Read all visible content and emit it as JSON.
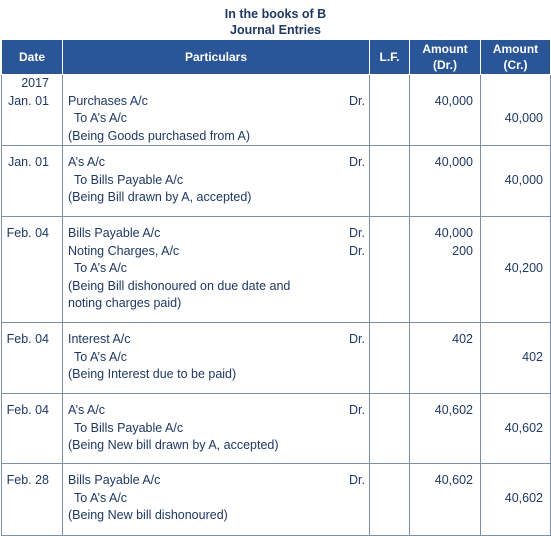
{
  "header": {
    "title": "In the books of B",
    "subtitle": "Journal Entries"
  },
  "columns": {
    "date": "Date",
    "particulars": "Particulars",
    "lf": "L.F.",
    "dr_line1": "Amount",
    "dr_line2": "(Dr.)",
    "cr_line1": "Amount",
    "cr_line2": "(Cr.)"
  },
  "entries": [
    {
      "year": "2017",
      "date": "Jan. 01",
      "debit1": "Purchases A/c",
      "dr1": "Dr.",
      "credit": "To A’s A/c",
      "narration": "(Being Goods purchased from A)",
      "dr_amt1": "40,000",
      "cr_amt": "40,000"
    },
    {
      "date": "Jan. 01",
      "debit1": "A’s A/c",
      "dr1": "Dr.",
      "credit": "To Bills Payable A/c",
      "narration": "(Being Bill drawn by A, accepted)",
      "dr_amt1": "40,000",
      "cr_amt": "40,000"
    },
    {
      "date": "Feb. 04",
      "debit1": "Bills Payable A/c",
      "debit2": "Noting Charges, A/c",
      "dr1": "Dr.",
      "dr2": "Dr.",
      "credit": "To A’s A/c",
      "narration1": "(Being Bill dishonoured on due date and",
      "narration2": "noting charges paid)",
      "dr_amt1": "40,000",
      "dr_amt2": "200",
      "cr_amt": "40,200"
    },
    {
      "date": "Feb. 04",
      "debit1": "Interest A/c",
      "dr1": "Dr.",
      "credit": "To A’s A/c",
      "narration": "(Being Interest due to be paid)",
      "dr_amt1": "402",
      "cr_amt": "402"
    },
    {
      "date": "Feb. 04",
      "debit1": "A’s A/c",
      "dr1": "Dr.",
      "credit": "To Bills Payable A/c",
      "narration": "(Being New bill drawn by A, accepted)",
      "dr_amt1": "40,602",
      "cr_amt": "40,602"
    },
    {
      "date": "Feb. 28",
      "debit1": "Bills Payable A/c",
      "dr1": "Dr.",
      "credit": "To A’s A/c",
      "narration": "(Being New bill dishonoured)",
      "dr_amt1": "40,602",
      "cr_amt": "40,602"
    }
  ]
}
